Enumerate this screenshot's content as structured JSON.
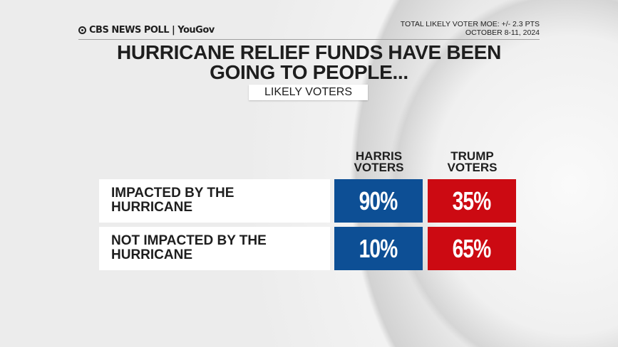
{
  "header": {
    "logo_text": "CBS NEWS POLL | YouGov",
    "moe": "TOTAL LIKELY VOTER MOE: +/- 2.3 PTS",
    "dates": "OCTOBER 8-11, 2024"
  },
  "colors": {
    "harris": "#0d4f95",
    "trump": "#cc0a12"
  },
  "chart_data": {
    "type": "table",
    "title": "HURRICANE RELIEF FUNDS HAVE BEEN GOING TO PEOPLE...",
    "subtitle": "LIKELY VOTERS",
    "columns": [
      "HARRIS VOTERS",
      "TRUMP VOTERS"
    ],
    "rows": [
      {
        "label": "IMPACTED BY THE HURRICANE",
        "values": [
          "90%",
          "35%"
        ]
      },
      {
        "label": "NOT IMPACTED BY THE HURRICANE",
        "values": [
          "10%",
          "65%"
        ]
      }
    ]
  }
}
